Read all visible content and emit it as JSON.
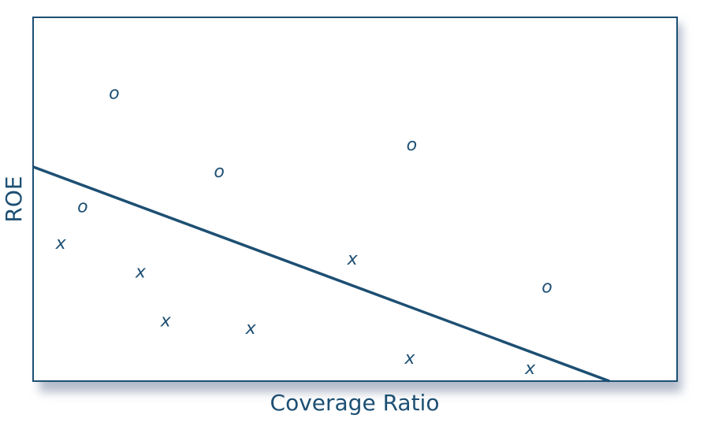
{
  "chart_data": {
    "type": "scatter",
    "title": "",
    "xlabel": "Coverage Ratio",
    "ylabel": "ROE",
    "xlim": [
      0,
      100
    ],
    "ylim": [
      0,
      100
    ],
    "grid": false,
    "legend": "none",
    "colors": {
      "ink": "#1d4f73",
      "frame": "#1d4f73",
      "background": "#ffffff",
      "shadow": "#b4bccb"
    },
    "series": [
      {
        "marker": "O",
        "points": [
          {
            "x": 12.6,
            "y": 79.3
          },
          {
            "x": 7.7,
            "y": 48.2
          },
          {
            "x": 28.9,
            "y": 57.8
          },
          {
            "x": 58.8,
            "y": 65.2
          },
          {
            "x": 79.8,
            "y": 26.1
          }
        ]
      },
      {
        "marker": "X",
        "points": [
          {
            "x": 4.3,
            "y": 38.1
          },
          {
            "x": 16.7,
            "y": 30.2
          },
          {
            "x": 20.6,
            "y": 16.8
          },
          {
            "x": 33.8,
            "y": 14.7
          },
          {
            "x": 49.6,
            "y": 33.8
          },
          {
            "x": 58.5,
            "y": 6.5
          },
          {
            "x": 77.2,
            "y": 3.7
          }
        ]
      }
    ],
    "line": {
      "x": [
        0,
        89.5
      ],
      "y": [
        58.9,
        0
      ]
    }
  }
}
